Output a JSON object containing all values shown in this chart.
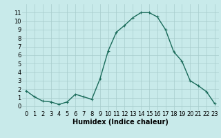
{
  "x": [
    0,
    1,
    2,
    3,
    4,
    5,
    6,
    7,
    8,
    9,
    10,
    11,
    12,
    13,
    14,
    15,
    16,
    17,
    18,
    19,
    20,
    21,
    22,
    23
  ],
  "y": [
    1.8,
    1.1,
    0.6,
    0.5,
    0.2,
    0.5,
    1.4,
    1.1,
    0.8,
    3.2,
    6.5,
    8.7,
    9.5,
    10.4,
    11.0,
    11.0,
    10.5,
    9.0,
    6.4,
    5.3,
    3.0,
    2.4,
    1.7,
    0.3
  ],
  "line_color": "#1a6b5a",
  "bg_color": "#c8eaea",
  "grid_color": "#a8cccc",
  "xlabel": "Humidex (Indice chaleur)",
  "ylim": [
    -0.5,
    12
  ],
  "xlim": [
    -0.5,
    23.5
  ],
  "yticks": [
    0,
    1,
    2,
    3,
    4,
    5,
    6,
    7,
    8,
    9,
    10,
    11
  ],
  "xticks": [
    0,
    1,
    2,
    3,
    4,
    5,
    6,
    7,
    8,
    9,
    10,
    11,
    12,
    13,
    14,
    15,
    16,
    17,
    18,
    19,
    20,
    21,
    22,
    23
  ],
  "marker": "+",
  "marker_size": 3.5,
  "linewidth": 1.0,
  "xlabel_fontsize": 7,
  "tick_fontsize": 6
}
